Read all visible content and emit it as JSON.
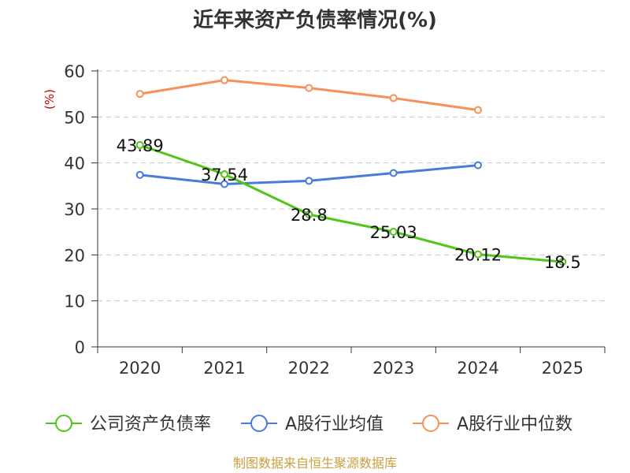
{
  "chart_data": {
    "type": "line",
    "title": "近年来资产负债率情况(%)",
    "ylabel": "(%)",
    "xlabel": "",
    "categories": [
      "2020",
      "2021",
      "2022",
      "2023",
      "2024",
      "2025"
    ],
    "ylim": [
      0,
      60
    ],
    "yticks": [
      0,
      10,
      20,
      30,
      40,
      50,
      60
    ],
    "grid": true,
    "legend_position": "bottom",
    "series": [
      {
        "name": "公司资产负债率",
        "color": "#52c41a",
        "values": [
          43.89,
          37.54,
          28.8,
          25.03,
          20.12,
          18.5
        ],
        "labels": [
          "43.89",
          "37.54",
          "28.8",
          "25.03",
          "20.12",
          "18.5"
        ]
      },
      {
        "name": "A股行业均值",
        "color": "#4a7bd6",
        "values": [
          37.4,
          35.4,
          36.1,
          37.8,
          39.5,
          null
        ]
      },
      {
        "name": "A股行业中位数",
        "color": "#f7915a",
        "values": [
          55.0,
          58.0,
          56.3,
          54.1,
          51.5,
          null
        ]
      }
    ],
    "source": "制图数据来自恒生聚源数据库",
    "source_color": "#c8a040",
    "ylabel_color": "#cc0000"
  }
}
